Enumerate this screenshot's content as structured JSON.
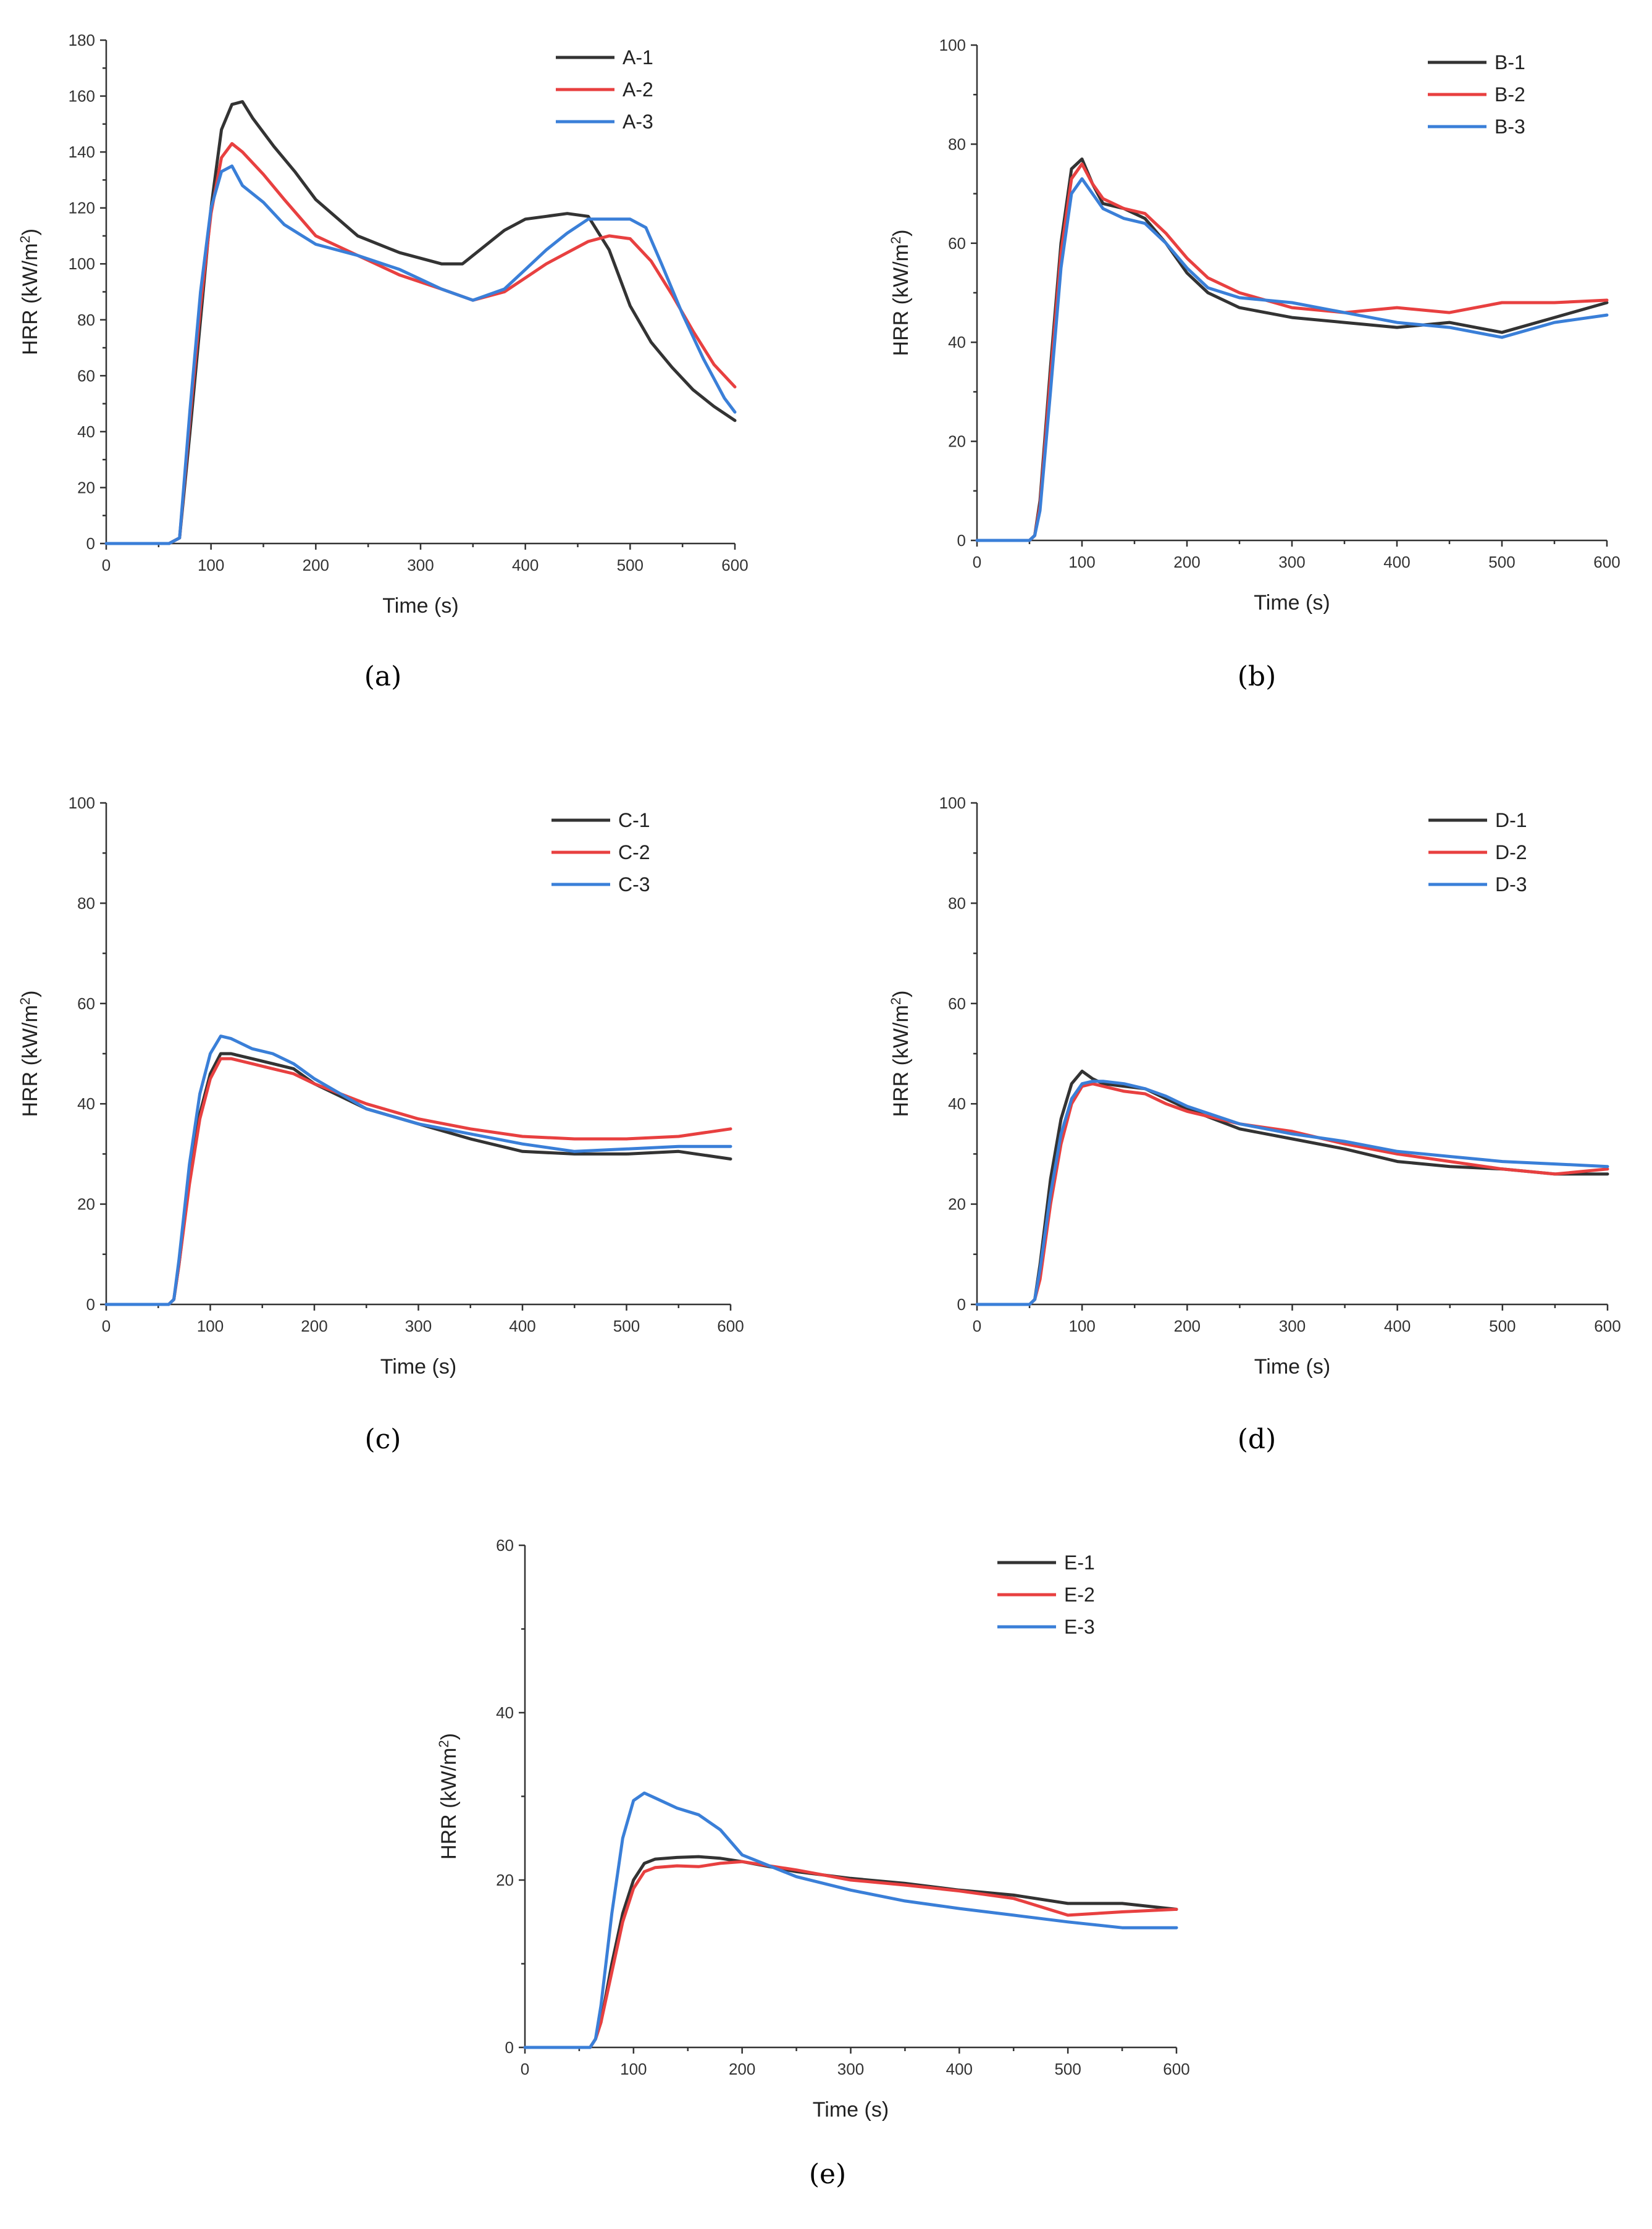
{
  "chart_data": [
    {
      "type": "line",
      "panel_label": "(a)",
      "xlabel": "Time (s)",
      "ylabel": "HRR (kW/m2)",
      "ylabel_unit_sup": "2",
      "xlim": [
        0,
        600
      ],
      "ylim": [
        0,
        180
      ],
      "xticks": [
        0,
        100,
        200,
        300,
        400,
        500,
        600
      ],
      "yticks": [
        0,
        20,
        40,
        60,
        80,
        100,
        120,
        140,
        160,
        180
      ],
      "series": [
        {
          "name": "A-1",
          "color": "#333333",
          "x": [
            0,
            60,
            70,
            80,
            90,
            100,
            110,
            120,
            130,
            140,
            160,
            180,
            200,
            240,
            280,
            320,
            340,
            360,
            380,
            400,
            420,
            440,
            460,
            480,
            500,
            520,
            540,
            560,
            580,
            600
          ],
          "y": [
            0,
            0,
            2,
            40,
            80,
            120,
            148,
            157,
            158,
            152,
            142,
            133,
            123,
            110,
            104,
            100,
            100,
            106,
            112,
            116,
            117,
            118,
            117,
            105,
            85,
            72,
            63,
            55,
            49,
            44
          ]
        },
        {
          "name": "A-2",
          "color": "#e84040",
          "x": [
            0,
            60,
            70,
            80,
            90,
            100,
            110,
            120,
            130,
            150,
            170,
            200,
            240,
            280,
            320,
            350,
            380,
            400,
            420,
            440,
            460,
            480,
            500,
            520,
            540,
            560,
            580,
            600
          ],
          "y": [
            0,
            0,
            2,
            45,
            85,
            118,
            138,
            143,
            140,
            132,
            123,
            110,
            103,
            96,
            91,
            87,
            90,
            95,
            100,
            104,
            108,
            110,
            109,
            101,
            89,
            76,
            64,
            56
          ]
        },
        {
          "name": "A-3",
          "color": "#3a7fd8",
          "x": [
            0,
            60,
            70,
            80,
            90,
            100,
            110,
            120,
            130,
            150,
            170,
            200,
            240,
            280,
            320,
            350,
            380,
            400,
            420,
            440,
            460,
            480,
            500,
            515,
            530,
            550,
            570,
            590,
            600
          ],
          "y": [
            0,
            0,
            2,
            48,
            90,
            120,
            133,
            135,
            128,
            122,
            114,
            107,
            103,
            98,
            91,
            87,
            91,
            98,
            105,
            111,
            116,
            116,
            116,
            113,
            100,
            82,
            66,
            52,
            47
          ]
        }
      ]
    },
    {
      "type": "line",
      "panel_label": "(b)",
      "xlabel": "Time (s)",
      "ylabel": "HRR (kW/m2)",
      "ylabel_unit_sup": "2",
      "xlim": [
        0,
        600
      ],
      "ylim": [
        0,
        100
      ],
      "xticks": [
        0,
        100,
        200,
        300,
        400,
        500,
        600
      ],
      "yticks": [
        0,
        20,
        40,
        60,
        80,
        100
      ],
      "series": [
        {
          "name": "B-1",
          "color": "#333333",
          "x": [
            0,
            50,
            55,
            60,
            70,
            80,
            90,
            100,
            110,
            120,
            140,
            160,
            180,
            200,
            220,
            250,
            300,
            350,
            400,
            450,
            500,
            550,
            600
          ],
          "y": [
            0,
            0,
            1,
            8,
            35,
            60,
            75,
            77,
            72,
            68,
            67,
            65,
            60,
            54,
            50,
            47,
            45,
            44,
            43,
            44,
            42,
            45,
            48
          ]
        },
        {
          "name": "B-2",
          "color": "#e84040",
          "x": [
            0,
            50,
            55,
            60,
            70,
            80,
            90,
            100,
            110,
            120,
            140,
            160,
            180,
            200,
            220,
            250,
            300,
            350,
            400,
            450,
            500,
            550,
            600
          ],
          "y": [
            0,
            0,
            1,
            7,
            33,
            58,
            73,
            76,
            72,
            69,
            67,
            66,
            62,
            57,
            53,
            50,
            47,
            46,
            47,
            46,
            48,
            48,
            48.5
          ]
        },
        {
          "name": "B-3",
          "color": "#3a7fd8",
          "x": [
            0,
            50,
            55,
            60,
            70,
            80,
            90,
            100,
            110,
            120,
            140,
            160,
            180,
            200,
            220,
            250,
            300,
            350,
            400,
            450,
            500,
            550,
            600
          ],
          "y": [
            0,
            0,
            1,
            6,
            30,
            55,
            70,
            73,
            70,
            67,
            65,
            64,
            60,
            55,
            51,
            49,
            48,
            46,
            44,
            43,
            41,
            44,
            45.5
          ]
        }
      ]
    },
    {
      "type": "line",
      "panel_label": "(c)",
      "xlabel": "Time (s)",
      "ylabel": "HRR (kW/m2)",
      "ylabel_unit_sup": "2",
      "xlim": [
        0,
        600
      ],
      "ylim": [
        0,
        100
      ],
      "xticks": [
        0,
        100,
        200,
        300,
        400,
        500,
        600
      ],
      "yticks": [
        0,
        20,
        40,
        60,
        80,
        100
      ],
      "series": [
        {
          "name": "C-1",
          "color": "#333333",
          "x": [
            0,
            60,
            65,
            70,
            80,
            90,
            100,
            110,
            120,
            140,
            160,
            180,
            200,
            250,
            300,
            350,
            400,
            450,
            500,
            550,
            600
          ],
          "y": [
            0,
            0,
            1,
            8,
            25,
            38,
            46,
            50,
            50,
            49,
            48,
            47,
            44,
            39,
            36,
            33,
            30.5,
            30,
            30,
            30.5,
            29
          ]
        },
        {
          "name": "C-2",
          "color": "#e84040",
          "x": [
            0,
            60,
            65,
            70,
            80,
            90,
            100,
            110,
            120,
            140,
            160,
            180,
            200,
            250,
            300,
            350,
            400,
            450,
            500,
            550,
            600
          ],
          "y": [
            0,
            0,
            1,
            8,
            24,
            37,
            45,
            49,
            49,
            48,
            47,
            46,
            44,
            40,
            37,
            35,
            33.5,
            33,
            33,
            33.5,
            35
          ]
        },
        {
          "name": "C-3",
          "color": "#3a7fd8",
          "x": [
            0,
            60,
            65,
            70,
            80,
            90,
            100,
            110,
            120,
            140,
            160,
            180,
            200,
            250,
            300,
            350,
            400,
            450,
            500,
            550,
            600
          ],
          "y": [
            0,
            0,
            1,
            9,
            28,
            42,
            50,
            53.5,
            53,
            51,
            50,
            48,
            45,
            39,
            36,
            34,
            32,
            30.5,
            31,
            31.5,
            31.5
          ]
        }
      ]
    },
    {
      "type": "line",
      "panel_label": "(d)",
      "xlabel": "Time (s)",
      "ylabel": "HRR (kW/m2)",
      "ylabel_unit_sup": "2",
      "xlim": [
        0,
        600
      ],
      "ylim": [
        0,
        100
      ],
      "xticks": [
        0,
        100,
        200,
        300,
        400,
        500,
        600
      ],
      "yticks": [
        0,
        20,
        40,
        60,
        80,
        100
      ],
      "series": [
        {
          "name": "D-1",
          "color": "#333333",
          "x": [
            0,
            50,
            55,
            60,
            70,
            80,
            90,
            100,
            110,
            120,
            140,
            160,
            180,
            200,
            250,
            300,
            350,
            400,
            450,
            500,
            550,
            600
          ],
          "y": [
            0,
            0,
            1,
            8,
            25,
            37,
            44,
            46.5,
            45,
            44,
            43.5,
            43,
            41,
            39,
            35,
            33,
            31,
            28.5,
            27.5,
            27,
            26,
            26
          ]
        },
        {
          "name": "D-2",
          "color": "#e84040",
          "x": [
            0,
            50,
            55,
            60,
            70,
            80,
            90,
            100,
            110,
            120,
            140,
            160,
            180,
            200,
            250,
            300,
            350,
            400,
            450,
            500,
            550,
            600
          ],
          "y": [
            0,
            0,
            1,
            5,
            20,
            32,
            40,
            43.5,
            44,
            43.5,
            42.5,
            42,
            40,
            38.5,
            36,
            34.5,
            32,
            30,
            28.5,
            27,
            26,
            27
          ]
        },
        {
          "name": "D-3",
          "color": "#3a7fd8",
          "x": [
            0,
            50,
            55,
            60,
            70,
            80,
            90,
            100,
            110,
            120,
            140,
            160,
            180,
            200,
            250,
            300,
            350,
            400,
            450,
            500,
            550,
            600
          ],
          "y": [
            0,
            0,
            1,
            7,
            22,
            34,
            41,
            44,
            44.5,
            44.5,
            44,
            43,
            41.5,
            39.5,
            36,
            34,
            32.5,
            30.5,
            29.5,
            28.5,
            28,
            27.5
          ]
        }
      ]
    },
    {
      "type": "line",
      "panel_label": "(e)",
      "xlabel": "Time (s)",
      "ylabel": "HRR (kW/m2)",
      "ylabel_unit_sup": "2",
      "xlim": [
        0,
        600
      ],
      "ylim": [
        0,
        60
      ],
      "xticks": [
        0,
        100,
        200,
        300,
        400,
        500,
        600
      ],
      "yticks": [
        0,
        20,
        40,
        60
      ],
      "series": [
        {
          "name": "E-1",
          "color": "#333333",
          "x": [
            0,
            60,
            65,
            70,
            80,
            90,
            100,
            110,
            120,
            140,
            160,
            180,
            200,
            250,
            300,
            350,
            400,
            450,
            500,
            550,
            600
          ],
          "y": [
            0,
            0,
            1,
            3,
            10,
            16,
            20,
            22,
            22.5,
            22.7,
            22.8,
            22.6,
            22.2,
            21,
            20.2,
            19.6,
            18.8,
            18.2,
            17.2,
            17.2,
            16.5
          ]
        },
        {
          "name": "E-2",
          "color": "#e84040",
          "x": [
            0,
            60,
            65,
            70,
            80,
            90,
            100,
            110,
            120,
            140,
            160,
            180,
            200,
            250,
            300,
            350,
            400,
            450,
            500,
            550,
            600
          ],
          "y": [
            0,
            0,
            1,
            3,
            9,
            15,
            19,
            21,
            21.5,
            21.7,
            21.6,
            22,
            22.2,
            21.2,
            20,
            19.4,
            18.7,
            17.8,
            15.8,
            16.2,
            16.5
          ]
        },
        {
          "name": "E-3",
          "color": "#3a7fd8",
          "x": [
            0,
            60,
            65,
            70,
            80,
            90,
            100,
            110,
            120,
            140,
            160,
            180,
            200,
            250,
            300,
            350,
            400,
            450,
            500,
            550,
            600
          ],
          "y": [
            0,
            0,
            1,
            5,
            16,
            25,
            29.5,
            30.4,
            29.8,
            28.6,
            27.8,
            26,
            23,
            20.4,
            18.8,
            17.5,
            16.6,
            15.8,
            15,
            14.3,
            14.3
          ]
        }
      ]
    }
  ]
}
